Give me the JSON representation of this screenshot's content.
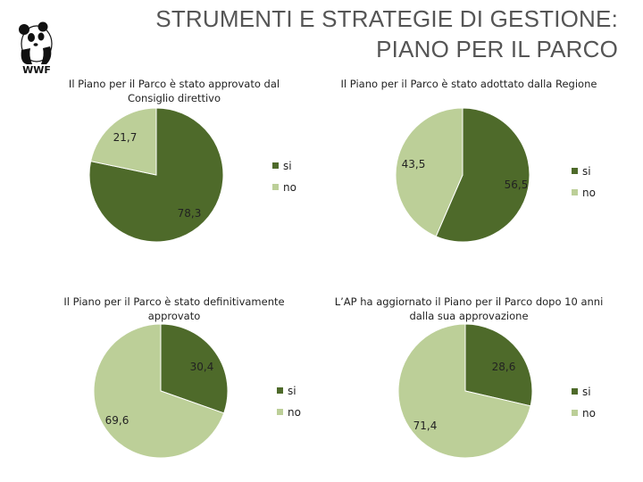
{
  "logo": {
    "text": "WWF",
    "icon": "panda-icon"
  },
  "header": {
    "title_line1": "STRUMENTI E STRATEGIE DI GESTIONE:",
    "title_line2": "PIANO PER IL PARCO"
  },
  "colors": {
    "si": "#4e6a2a",
    "no": "#bccf98",
    "title": "#555555"
  },
  "chart_data": [
    {
      "type": "pie",
      "title": "Il Piano per il Parco è stato approvato dal Consiglio direttivo",
      "title_lines": [
        "Il Piano per il Parco è stato approvato dal",
        "Consiglio direttivo"
      ],
      "categories": [
        "si",
        "no"
      ],
      "values": [
        78.3,
        21.7
      ],
      "value_labels": [
        "78,3",
        "21,7"
      ],
      "legend_position": "right"
    },
    {
      "type": "pie",
      "title": "Il Piano per il Parco è stato adottato dalla Regione",
      "title_lines": [
        "Il Piano per il Parco è stato adottato dalla Regione"
      ],
      "categories": [
        "si",
        "no"
      ],
      "values": [
        56.5,
        43.5
      ],
      "value_labels": [
        "56,5",
        "43,5"
      ],
      "legend_position": "right"
    },
    {
      "type": "pie",
      "title": "Il Piano per il Parco è stato definitivamente approvato",
      "title_lines": [
        "Il Piano per il Parco è stato definitivamente",
        "approvato"
      ],
      "categories": [
        "si",
        "no"
      ],
      "values": [
        30.4,
        69.6
      ],
      "value_labels": [
        "30,4",
        "69,6"
      ],
      "legend_position": "right"
    },
    {
      "type": "pie",
      "title": "L'AP ha aggiornato il Piano per il Parco dopo 10 anni dalla sua approvazione",
      "title_lines": [
        "L’AP ha aggiornato il Piano per il Parco dopo 10 anni",
        "dalla sua approvazione"
      ],
      "categories": [
        "si",
        "no"
      ],
      "values": [
        28.6,
        71.4
      ],
      "value_labels": [
        "28,6",
        "71,4"
      ],
      "legend_position": "right"
    }
  ]
}
